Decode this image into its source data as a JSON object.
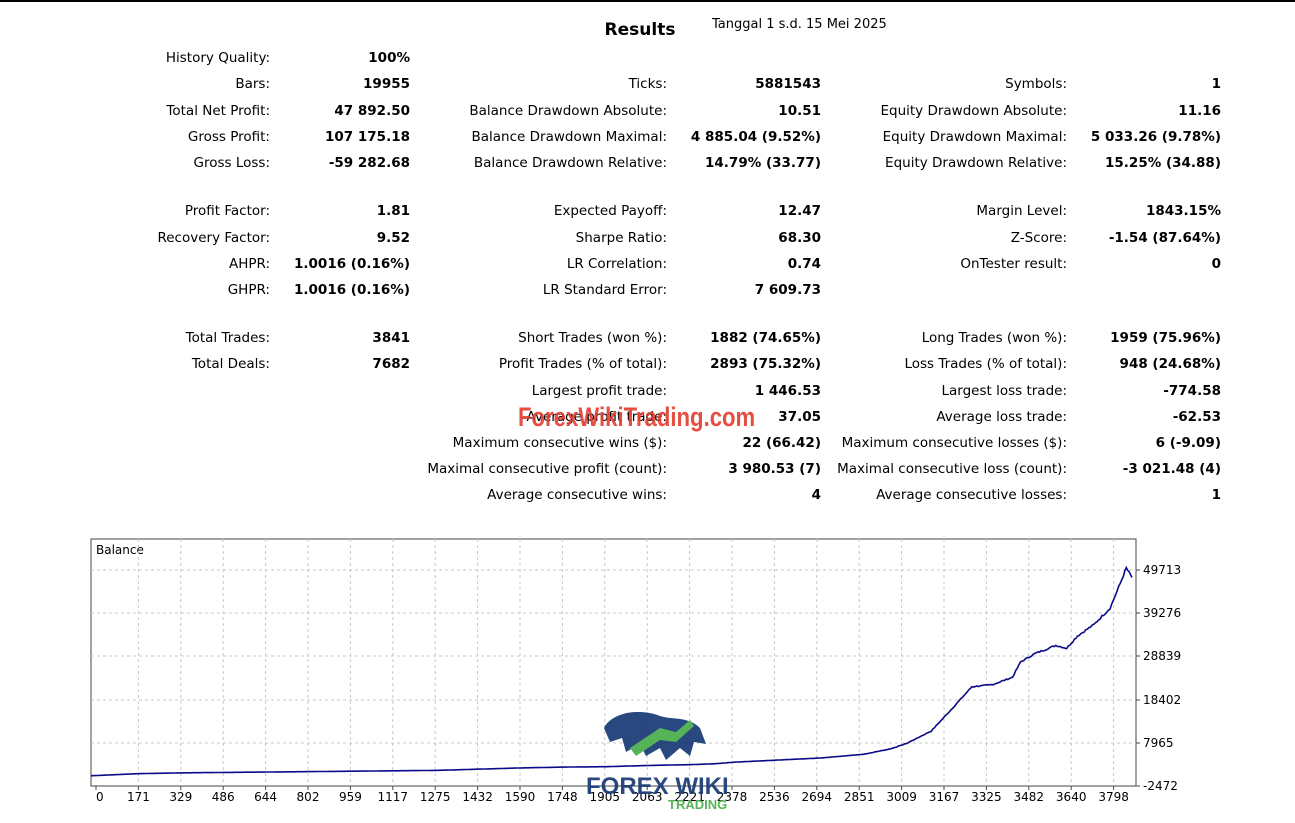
{
  "header": {
    "title": "Results",
    "date": "Tanggal 1 s.d. 15 Mei 2025"
  },
  "stats": {
    "col1": [
      {
        "label": "History Quality:",
        "value": "100%"
      },
      {
        "label": "Bars:",
        "value": "19955"
      },
      {
        "label": "Total Net Profit:",
        "value": "47 892.50"
      },
      {
        "label": "Gross Profit:",
        "value": "107 175.18"
      },
      {
        "label": "Gross Loss:",
        "value": "-59 282.68"
      },
      {
        "label": "Profit Factor:",
        "value": "1.81"
      },
      {
        "label": "Recovery Factor:",
        "value": "9.52"
      },
      {
        "label": "AHPR:",
        "value": "1.0016 (0.16%)"
      },
      {
        "label": "GHPR:",
        "value": "1.0016 (0.16%)"
      },
      {
        "label": "Total Trades:",
        "value": "3841"
      },
      {
        "label": "Total Deals:",
        "value": "7682"
      }
    ],
    "col2": [
      {
        "label": "Ticks:",
        "value": "5881543"
      },
      {
        "label": "Balance Drawdown Absolute:",
        "value": "10.51"
      },
      {
        "label": "Balance Drawdown Maximal:",
        "value": "4 885.04 (9.52%)"
      },
      {
        "label": "Balance Drawdown Relative:",
        "value": "14.79% (33.77)"
      },
      {
        "label": "Expected Payoff:",
        "value": "12.47"
      },
      {
        "label": "Sharpe Ratio:",
        "value": "68.30"
      },
      {
        "label": "LR Correlation:",
        "value": "0.74"
      },
      {
        "label": "LR Standard Error:",
        "value": "7 609.73"
      },
      {
        "label": "Short Trades (won %):",
        "value": "1882 (74.65%)"
      },
      {
        "label": "Profit Trades (% of total):",
        "value": "2893 (75.32%)"
      },
      {
        "label": "Largest profit trade:",
        "value": "1 446.53"
      },
      {
        "label": "Average profit trade:",
        "value": "37.05"
      },
      {
        "label": "Maximum consecutive wins ($):",
        "value": "22 (66.42)"
      },
      {
        "label": "Maximal consecutive profit (count):",
        "value": "3 980.53 (7)"
      },
      {
        "label": "Average consecutive wins:",
        "value": "4"
      }
    ],
    "col3": [
      {
        "label": "Symbols:",
        "value": "1"
      },
      {
        "label": "Equity Drawdown Absolute:",
        "value": "11.16"
      },
      {
        "label": "Equity Drawdown Maximal:",
        "value": "5 033.26 (9.78%)"
      },
      {
        "label": "Equity Drawdown Relative:",
        "value": "15.25% (34.88)"
      },
      {
        "label": "Margin Level:",
        "value": "1843.15%"
      },
      {
        "label": "Z-Score:",
        "value": "-1.54 (87.64%)"
      },
      {
        "label": "OnTester result:",
        "value": "0"
      },
      {
        "label": "Long Trades (won %):",
        "value": "1959 (75.96%)"
      },
      {
        "label": "Loss Trades (% of total):",
        "value": "948 (24.68%)"
      },
      {
        "label": "Largest loss trade:",
        "value": "-774.58"
      },
      {
        "label": "Average loss trade:",
        "value": "-62.53"
      },
      {
        "label": "Maximum consecutive losses ($):",
        "value": "6 (-9.09)"
      },
      {
        "label": "Maximal consecutive loss (count):",
        "value": "-3 021.48 (4)"
      },
      {
        "label": "Average consecutive losses:",
        "value": "1"
      }
    ]
  },
  "watermark": {
    "text": "ForexWikiTrading.com",
    "logo_top": "FOREX WIKI",
    "logo_bottom": "TRADING"
  },
  "chart_data": {
    "type": "line",
    "title": "Balance",
    "x_ticks": [
      "0",
      "171",
      "329",
      "486",
      "644",
      "802",
      "959",
      "1117",
      "1275",
      "1432",
      "1590",
      "1748",
      "1905",
      "2063",
      "2221",
      "2378",
      "2536",
      "2694",
      "2851",
      "3009",
      "3167",
      "3325",
      "3482",
      "3640",
      "3798"
    ],
    "y_ticks": [
      "49713",
      "39276",
      "28839",
      "18402",
      "7965",
      "-2472"
    ],
    "ylim": [
      -2472,
      52000
    ],
    "xlim": [
      0,
      3841
    ],
    "grid": true,
    "series": [
      {
        "color": "#0a0a8a",
        "x": [
          0,
          171,
          329,
          486,
          644,
          802,
          959,
          1117,
          1275,
          1432,
          1590,
          1748,
          1905,
          2063,
          2221,
          2300,
          2378,
          2536,
          2694,
          2851,
          2950,
          3009,
          3100,
          3167,
          3250,
          3325,
          3400,
          3430,
          3482,
          3560,
          3600,
          3640,
          3700,
          3760,
          3798,
          3820,
          3841
        ],
        "y": [
          0,
          500,
          700,
          800,
          900,
          1000,
          1100,
          1200,
          1300,
          1600,
          1900,
          2100,
          2200,
          2500,
          2700,
          2900,
          3300,
          3800,
          4300,
          5200,
          6500,
          7800,
          10800,
          15500,
          21500,
          22000,
          23800,
          27500,
          29500,
          31500,
          30800,
          33800,
          36500,
          40500,
          46500,
          50200,
          47900
        ]
      }
    ]
  }
}
